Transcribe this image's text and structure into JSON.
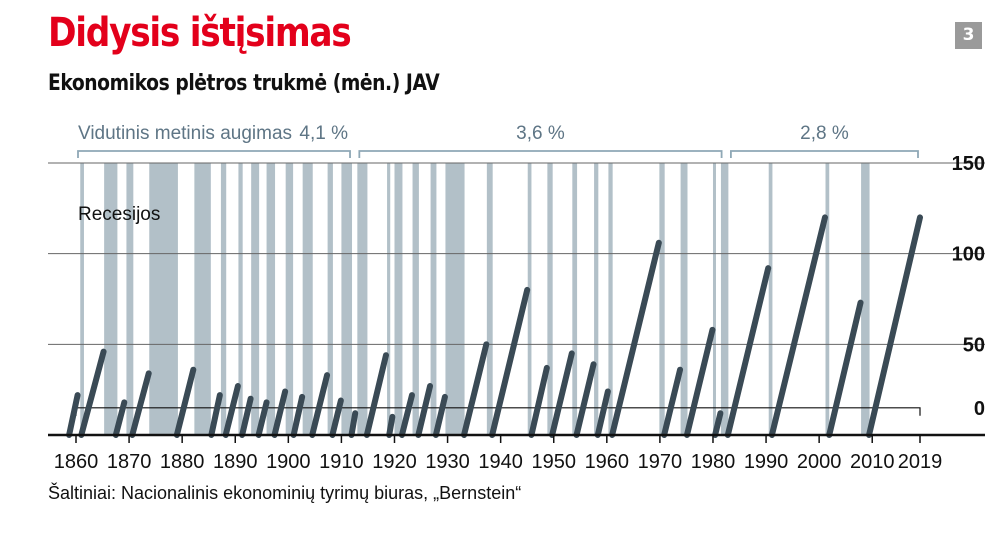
{
  "page": {
    "title": "Didysis ištįsimas",
    "subtitle": "Ekonomikos plėtros trukmė (mėn.) JAV",
    "badge": "3",
    "source": "Šaltiniai: Nacionalinis ekonominių tyrimų biuras, „Bernstein“"
  },
  "chart_data": {
    "type": "bar",
    "title": "Didysis ištįsimas",
    "subtitle": "Ekonomikos plėtros trukmė (mėn.) JAV",
    "xlabel": "",
    "ylabel": "",
    "xlim": [
      1860,
      2019
    ],
    "ylim": [
      0,
      150
    ],
    "grid": true,
    "x_ticks": [
      1860,
      1870,
      1880,
      1890,
      1900,
      1910,
      1920,
      1930,
      1940,
      1950,
      1960,
      1970,
      1980,
      1990,
      2000,
      2010,
      2019
    ],
    "y_ticks": [
      0,
      50,
      100,
      150
    ],
    "recession_label": "Recesijos",
    "recessions": [
      [
        1860.8,
        1861.5
      ],
      [
        1865.3,
        1867.8
      ],
      [
        1869.5,
        1870.8
      ],
      [
        1873.8,
        1879.2
      ],
      [
        1882.3,
        1885.4
      ],
      [
        1887.3,
        1888.3
      ],
      [
        1890.6,
        1891.4
      ],
      [
        1893.0,
        1894.5
      ],
      [
        1895.9,
        1897.5
      ],
      [
        1899.5,
        1900.9
      ],
      [
        1902.7,
        1904.6
      ],
      [
        1907.4,
        1908.4
      ],
      [
        1910.0,
        1912.0
      ],
      [
        1913.0,
        1914.9
      ],
      [
        1918.6,
        1919.2
      ],
      [
        1920.0,
        1921.5
      ],
      [
        1923.4,
        1924.6
      ],
      [
        1926.8,
        1927.9
      ],
      [
        1929.6,
        1933.2
      ],
      [
        1937.4,
        1938.5
      ],
      [
        1945.1,
        1945.8
      ],
      [
        1948.8,
        1949.8
      ],
      [
        1953.5,
        1954.4
      ],
      [
        1957.6,
        1958.4
      ],
      [
        1960.3,
        1961.1
      ],
      [
        1969.9,
        1970.9
      ],
      [
        1973.9,
        1975.2
      ],
      [
        1980.0,
        1980.5
      ],
      [
        1981.5,
        1982.9
      ],
      [
        1990.5,
        1991.2
      ],
      [
        2001.2,
        2001.9
      ],
      [
        2007.9,
        2009.5
      ]
    ],
    "expansions": [
      {
        "start": 1858.7,
        "end": 1860.3,
        "months": 22
      },
      {
        "start": 1861.0,
        "end": 1865.2,
        "months": 46
      },
      {
        "start": 1867.5,
        "end": 1869.1,
        "months": 18
      },
      {
        "start": 1870.6,
        "end": 1873.7,
        "months": 34
      },
      {
        "start": 1879.0,
        "end": 1882.1,
        "months": 36
      },
      {
        "start": 1885.5,
        "end": 1887.1,
        "months": 22
      },
      {
        "start": 1888.2,
        "end": 1890.5,
        "months": 27
      },
      {
        "start": 1891.3,
        "end": 1892.9,
        "months": 20
      },
      {
        "start": 1894.4,
        "end": 1895.9,
        "months": 18
      },
      {
        "start": 1897.4,
        "end": 1899.4,
        "months": 24
      },
      {
        "start": 1901.0,
        "end": 1902.6,
        "months": 21
      },
      {
        "start": 1904.5,
        "end": 1907.3,
        "months": 33
      },
      {
        "start": 1908.3,
        "end": 1909.9,
        "months": 19
      },
      {
        "start": 1911.9,
        "end": 1912.6,
        "months": 12
      },
      {
        "start": 1914.8,
        "end": 1918.4,
        "months": 44
      },
      {
        "start": 1919.0,
        "end": 1919.6,
        "months": 10
      },
      {
        "start": 1921.4,
        "end": 1923.3,
        "months": 22
      },
      {
        "start": 1924.5,
        "end": 1926.7,
        "months": 27
      },
      {
        "start": 1927.8,
        "end": 1929.5,
        "months": 21
      },
      {
        "start": 1933.1,
        "end": 1937.3,
        "months": 50
      },
      {
        "start": 1938.4,
        "end": 1945.0,
        "months": 80
      },
      {
        "start": 1945.8,
        "end": 1948.7,
        "months": 37
      },
      {
        "start": 1949.7,
        "end": 1953.4,
        "months": 45
      },
      {
        "start": 1954.3,
        "end": 1957.5,
        "months": 39
      },
      {
        "start": 1958.3,
        "end": 1960.2,
        "months": 24
      },
      {
        "start": 1961.0,
        "end": 1969.8,
        "months": 106
      },
      {
        "start": 1970.8,
        "end": 1973.8,
        "months": 36
      },
      {
        "start": 1975.1,
        "end": 1979.9,
        "months": 58
      },
      {
        "start": 1980.4,
        "end": 1981.4,
        "months": 12
      },
      {
        "start": 1982.8,
        "end": 1990.4,
        "months": 92
      },
      {
        "start": 1991.1,
        "end": 2001.1,
        "months": 120
      },
      {
        "start": 2001.9,
        "end": 2007.8,
        "months": 73
      },
      {
        "start": 2009.4,
        "end": 2019.0,
        "months": 120
      }
    ],
    "annotations": {
      "growth_label": "Vidutinis metinis augimas",
      "periods": [
        {
          "value": "4,1 %",
          "start": 1860,
          "end": 1912
        },
        {
          "value": "3,6 %",
          "start": 1913,
          "end": 1982
        },
        {
          "value": "2,8 %",
          "start": 1983,
          "end": 2019
        }
      ],
      "bracket_y": 15,
      "bracket_start": 1860,
      "bracket_end": 2019
    }
  },
  "colors": {
    "title": "#e3001b",
    "recession": "#b2c0c8",
    "expansion": "#3a4a55",
    "grid": "#666666",
    "axis": "#111111",
    "bracket": "#8fa8b6",
    "badge": "#9a9a9a",
    "text": "#111111"
  }
}
